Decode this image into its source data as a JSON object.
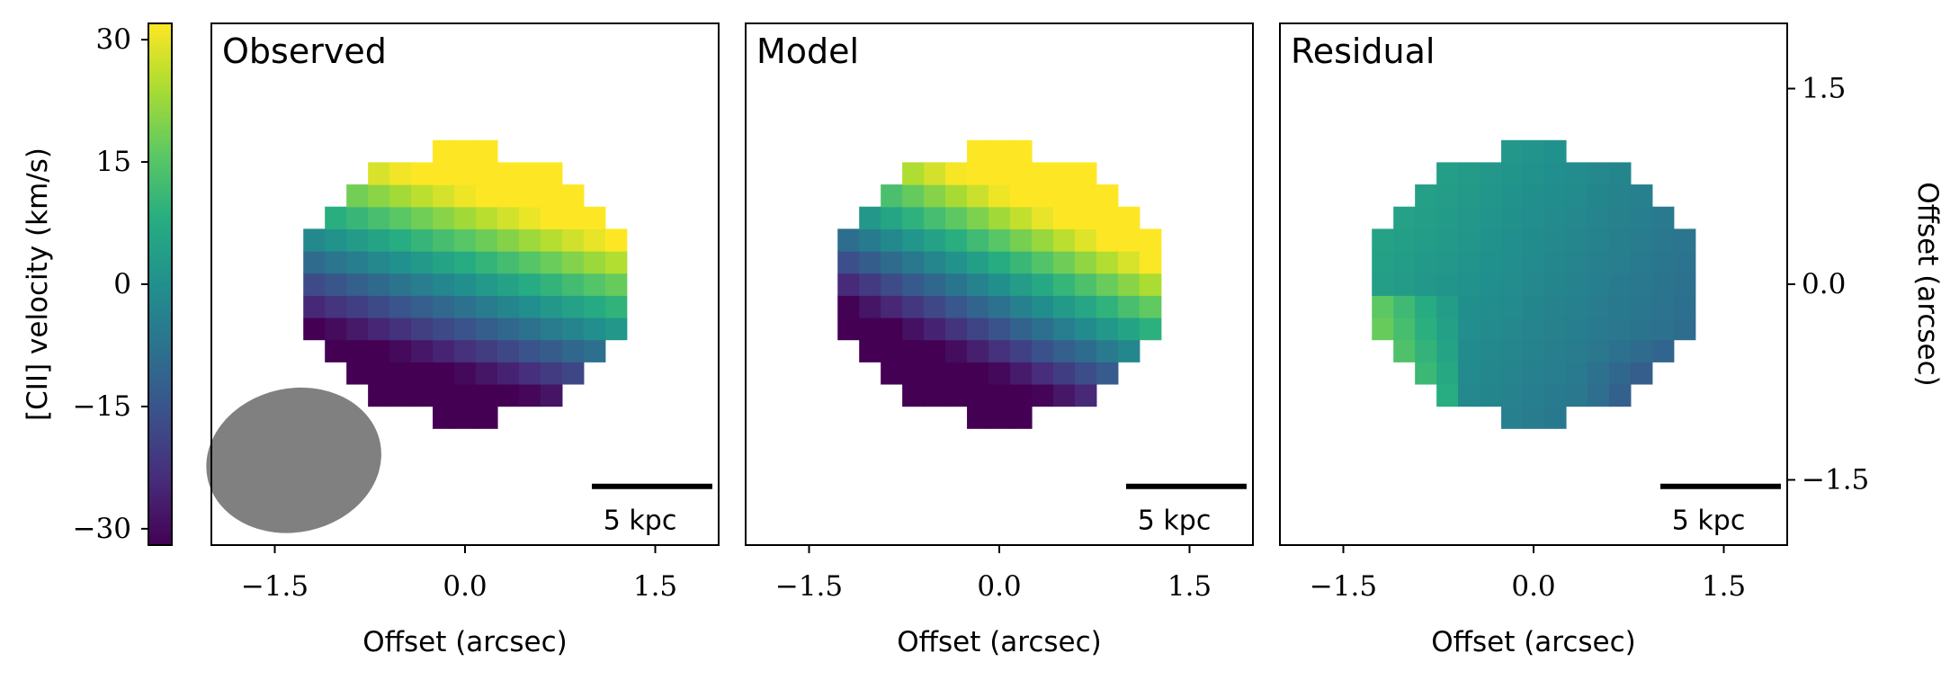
{
  "chart_data": [
    {
      "type": "heatmap",
      "panel": "observed",
      "title": "Observed",
      "xlabel": "Offset (arcsec)",
      "xticks": [
        "−1.5",
        "0.0",
        "1.5"
      ],
      "xlim": [
        -2.0,
        2.0
      ],
      "ylim": [
        -2.0,
        2.0
      ],
      "scalebar_label": "5 kpc",
      "beam": "ellipse",
      "field_pattern": "rotation disk, v = 45*(0.32*x + y) clipped to ±30 km/s"
    },
    {
      "type": "heatmap",
      "panel": "model",
      "title": "Model",
      "xlabel": "Offset (arcsec)",
      "xticks": [
        "−1.5",
        "0.0",
        "1.5"
      ],
      "xlim": [
        -2.0,
        2.0
      ],
      "ylim": [
        -2.0,
        2.0
      ],
      "scalebar_label": "5 kpc",
      "field_pattern": "rotation disk, v = 45*(0.45*x + y) clipped to ±30 km/s"
    },
    {
      "type": "heatmap",
      "panel": "residual",
      "title": "Residual",
      "xlabel": "Offset (arcsec)",
      "xticks": [
        "−1.5",
        "0.0",
        "1.5"
      ],
      "xlim": [
        -2.0,
        2.0
      ],
      "ylim": [
        -2.0,
        2.0
      ],
      "yticks_right": [
        "1.5",
        "0.0",
        "−1.5"
      ],
      "ylabel_right": "Offset (arcsec)",
      "scalebar_label": "5 kpc",
      "field_pattern": "residual near 0 km/s, range about −12 to +20 km/s"
    }
  ],
  "colorbar": {
    "label": "[CII] velocity (km/s)",
    "ticks": [
      "30",
      "15",
      "0",
      "−15",
      "−30"
    ],
    "range": [
      -32,
      32
    ],
    "colormap": "viridis"
  }
}
